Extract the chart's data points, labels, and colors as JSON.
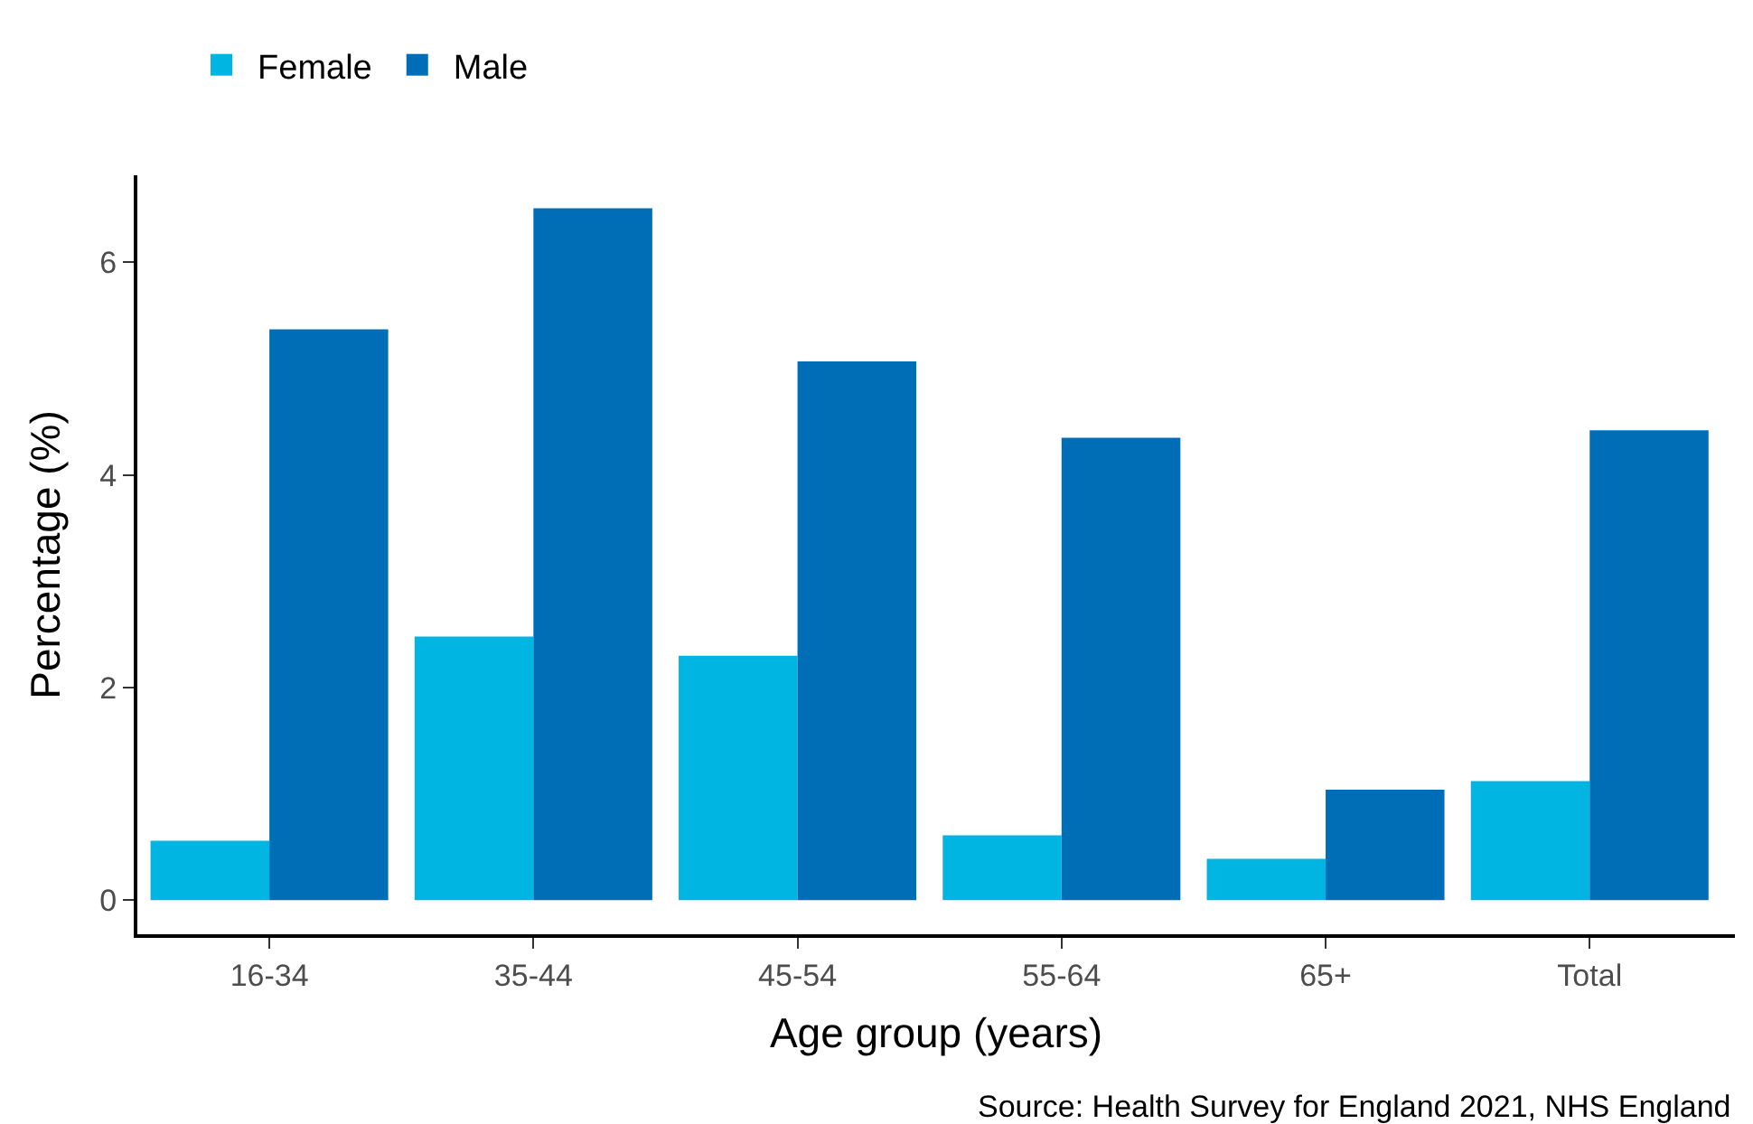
{
  "chart_data": {
    "type": "bar",
    "xlabel": "Age group (years)",
    "ylabel": "Percentage (%)",
    "categories": [
      "16-34",
      "35-44",
      "45-54",
      "55-64",
      "65+",
      "Total"
    ],
    "series": [
      {
        "name": "Female",
        "color": "#00b5e2",
        "values": [
          0.56,
          2.48,
          2.3,
          0.61,
          0.39,
          1.12
        ]
      },
      {
        "name": "Male",
        "color": "#006eb6",
        "values": [
          5.37,
          6.51,
          5.07,
          4.35,
          1.04,
          4.42
        ]
      }
    ],
    "ylim": [
      -0.32,
      6.82
    ],
    "yticks": [
      0,
      2,
      4,
      6
    ],
    "legend": "top left",
    "annotations": [
      "Source: Health Survey for England 2021, NHS England"
    ]
  }
}
